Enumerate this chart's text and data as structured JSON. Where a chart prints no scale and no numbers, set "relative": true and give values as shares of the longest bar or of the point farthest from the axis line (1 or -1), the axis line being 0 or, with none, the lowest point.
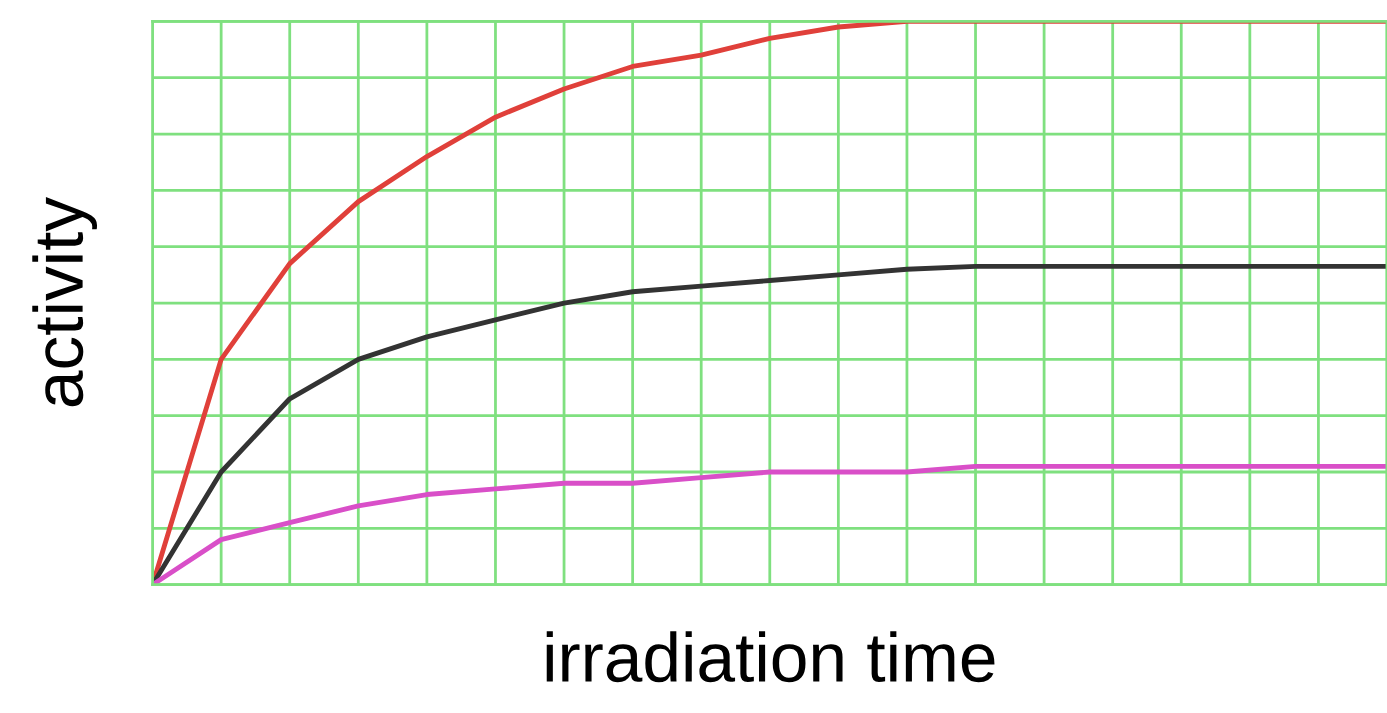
{
  "chart_data": {
    "type": "line",
    "relative": true,
    "xlabel": "irradiation time",
    "ylabel": "activity",
    "grid": true,
    "legend": false,
    "categories": [
      null,
      null,
      null,
      null,
      null,
      null,
      null,
      null,
      null,
      null,
      null,
      null,
      null,
      null,
      null,
      null,
      null,
      null,
      null
    ],
    "series": [
      {
        "color": "#e0403a",
        "values": [
          0,
          0.4,
          0.57,
          0.68,
          0.76,
          0.83,
          0.88,
          0.92,
          0.94,
          0.97,
          0.99,
          1.0,
          1.0,
          1.0,
          1.0,
          1.0,
          1.0,
          1.0,
          1.0
        ]
      },
      {
        "color": "#333333",
        "values": [
          0,
          0.2,
          0.33,
          0.4,
          0.44,
          0.47,
          0.5,
          0.52,
          0.53,
          0.54,
          0.55,
          0.56,
          0.565,
          0.565,
          0.565,
          0.565,
          0.565,
          0.565,
          0.565
        ]
      },
      {
        "color": "#d94fc8",
        "values": [
          0,
          0.08,
          0.11,
          0.14,
          0.16,
          0.17,
          0.18,
          0.18,
          0.19,
          0.2,
          0.2,
          0.2,
          0.21,
          0.21,
          0.21,
          0.21,
          0.21,
          0.21,
          0.21
        ]
      }
    ]
  }
}
